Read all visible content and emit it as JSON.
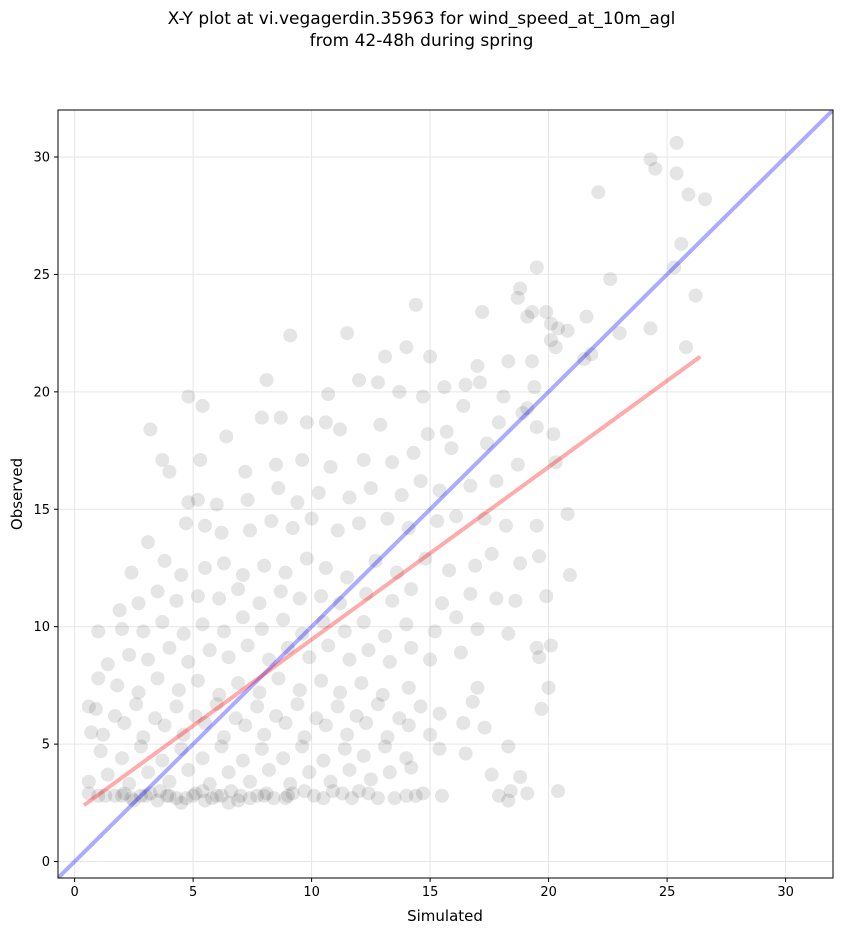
{
  "title_line1": "X-Y plot at vi.vegagerdin.35963 for wind_speed_at_10m_agl",
  "title_line2": "from 42-48h during spring",
  "colors": {
    "points": "#000000",
    "identity_line": "#0000ff",
    "regression_line": "#ff0000",
    "grid": "#e6e6e6"
  },
  "chart_data": {
    "type": "scatter",
    "xlabel": "Simulated",
    "ylabel": "Observed",
    "xlim": [
      -0.7,
      32
    ],
    "ylim": [
      -0.7,
      32
    ],
    "xticks": [
      0,
      5,
      10,
      15,
      20,
      25,
      30
    ],
    "yticks": [
      0,
      5,
      10,
      15,
      20,
      25,
      30
    ],
    "xtick_labels": [
      "0",
      "5",
      "10",
      "15",
      "20",
      "25",
      "30"
    ],
    "ytick_labels": [
      "0",
      "5",
      "10",
      "15",
      "20",
      "25",
      "30"
    ],
    "grid": true,
    "identity_line": {
      "x": [
        -0.7,
        32
      ],
      "y": [
        -0.7,
        32
      ]
    },
    "regression_line": {
      "x": [
        0.4,
        26.4
      ],
      "y": [
        2.4,
        21.5
      ]
    },
    "points": [
      [
        25.4,
        30.6
      ],
      [
        24.3,
        29.9
      ],
      [
        24.5,
        29.5
      ],
      [
        25.4,
        29.3
      ],
      [
        22.1,
        28.5
      ],
      [
        25.9,
        28.4
      ],
      [
        26.6,
        28.2
      ],
      [
        25.6,
        26.3
      ],
      [
        25.3,
        25.3
      ],
      [
        22.6,
        24.8
      ],
      [
        19.5,
        25.3
      ],
      [
        26.2,
        24.1
      ],
      [
        18.8,
        24.4
      ],
      [
        18.7,
        24.0
      ],
      [
        19.3,
        23.4
      ],
      [
        19.9,
        23.4
      ],
      [
        17.2,
        23.4
      ],
      [
        21.6,
        23.2
      ],
      [
        19.1,
        23.2
      ],
      [
        20.1,
        22.9
      ],
      [
        20.4,
        22.7
      ],
      [
        20.8,
        22.6
      ],
      [
        24.3,
        22.7
      ],
      [
        23.0,
        22.5
      ],
      [
        14.4,
        23.7
      ],
      [
        11.5,
        22.5
      ],
      [
        9.1,
        22.4
      ],
      [
        20.1,
        22.2
      ],
      [
        20.3,
        21.9
      ],
      [
        25.8,
        21.9
      ],
      [
        21.8,
        21.6
      ],
      [
        21.5,
        21.4
      ],
      [
        19.3,
        21.3
      ],
      [
        13.1,
        21.5
      ],
      [
        14.0,
        21.9
      ],
      [
        15.0,
        21.5
      ],
      [
        17.0,
        21.1
      ],
      [
        18.3,
        21.3
      ],
      [
        15.6,
        20.2
      ],
      [
        16.5,
        20.3
      ],
      [
        17.1,
        20.4
      ],
      [
        19.4,
        20.2
      ],
      [
        18.1,
        19.8
      ],
      [
        12.0,
        20.5
      ],
      [
        12.8,
        20.4
      ],
      [
        13.7,
        20.0
      ],
      [
        14.7,
        19.8
      ],
      [
        8.1,
        20.5
      ],
      [
        10.7,
        19.9
      ],
      [
        4.8,
        19.8
      ],
      [
        5.4,
        19.4
      ],
      [
        19.1,
        19.3
      ],
      [
        18.9,
        19.1
      ],
      [
        16.4,
        19.4
      ],
      [
        17.9,
        18.7
      ],
      [
        14.9,
        18.2
      ],
      [
        15.7,
        18.3
      ],
      [
        12.9,
        18.6
      ],
      [
        11.2,
        18.4
      ],
      [
        10.6,
        18.7
      ],
      [
        9.8,
        18.7
      ],
      [
        8.7,
        18.9
      ],
      [
        7.9,
        18.9
      ],
      [
        6.4,
        18.1
      ],
      [
        3.2,
        18.4
      ],
      [
        19.5,
        18.5
      ],
      [
        20.2,
        18.2
      ],
      [
        17.4,
        17.8
      ],
      [
        15.9,
        17.6
      ],
      [
        14.3,
        17.4
      ],
      [
        13.4,
        17.0
      ],
      [
        12.2,
        17.1
      ],
      [
        10.8,
        16.8
      ],
      [
        9.6,
        17.1
      ],
      [
        8.5,
        16.9
      ],
      [
        7.2,
        16.6
      ],
      [
        5.3,
        17.1
      ],
      [
        3.7,
        17.1
      ],
      [
        4.0,
        16.6
      ],
      [
        18.7,
        16.9
      ],
      [
        20.3,
        17.0
      ],
      [
        17.8,
        16.2
      ],
      [
        16.7,
        16.0
      ],
      [
        15.4,
        15.8
      ],
      [
        14.6,
        16.2
      ],
      [
        13.8,
        15.6
      ],
      [
        12.5,
        15.9
      ],
      [
        11.6,
        15.5
      ],
      [
        10.3,
        15.7
      ],
      [
        9.4,
        15.3
      ],
      [
        8.6,
        15.9
      ],
      [
        7.3,
        15.4
      ],
      [
        6.0,
        15.2
      ],
      [
        5.2,
        15.4
      ],
      [
        4.8,
        15.3
      ],
      [
        20.8,
        14.8
      ],
      [
        19.5,
        14.3
      ],
      [
        18.2,
        14.3
      ],
      [
        17.3,
        14.6
      ],
      [
        16.1,
        14.7
      ],
      [
        15.3,
        14.5
      ],
      [
        14.1,
        14.2
      ],
      [
        13.2,
        14.6
      ],
      [
        12.0,
        14.4
      ],
      [
        11.1,
        14.1
      ],
      [
        10.0,
        14.6
      ],
      [
        9.2,
        14.2
      ],
      [
        8.3,
        14.5
      ],
      [
        7.4,
        14.1
      ],
      [
        6.2,
        14.0
      ],
      [
        5.5,
        14.3
      ],
      [
        4.7,
        14.4
      ],
      [
        3.1,
        13.6
      ],
      [
        19.6,
        13.0
      ],
      [
        18.8,
        12.7
      ],
      [
        17.6,
        13.1
      ],
      [
        16.9,
        12.6
      ],
      [
        15.8,
        12.4
      ],
      [
        14.8,
        12.9
      ],
      [
        13.6,
        12.3
      ],
      [
        12.7,
        12.8
      ],
      [
        11.5,
        12.1
      ],
      [
        10.6,
        12.5
      ],
      [
        9.8,
        12.9
      ],
      [
        8.9,
        12.3
      ],
      [
        8.0,
        12.6
      ],
      [
        7.1,
        12.2
      ],
      [
        6.3,
        12.7
      ],
      [
        5.5,
        12.5
      ],
      [
        4.5,
        12.2
      ],
      [
        3.8,
        12.8
      ],
      [
        2.4,
        12.3
      ],
      [
        20.9,
        12.2
      ],
      [
        19.9,
        11.3
      ],
      [
        18.6,
        11.1
      ],
      [
        17.8,
        11.2
      ],
      [
        16.7,
        11.4
      ],
      [
        15.5,
        11.0
      ],
      [
        14.2,
        11.6
      ],
      [
        13.4,
        11.1
      ],
      [
        12.3,
        11.4
      ],
      [
        11.2,
        11.0
      ],
      [
        10.4,
        11.3
      ],
      [
        9.5,
        11.2
      ],
      [
        8.7,
        11.5
      ],
      [
        7.8,
        11.0
      ],
      [
        6.9,
        11.6
      ],
      [
        6.1,
        11.2
      ],
      [
        5.2,
        11.3
      ],
      [
        4.3,
        11.1
      ],
      [
        3.5,
        11.5
      ],
      [
        2.7,
        11.0
      ],
      [
        1.9,
        10.7
      ],
      [
        18.3,
        9.7
      ],
      [
        17.0,
        9.9
      ],
      [
        16.1,
        10.4
      ],
      [
        15.2,
        9.8
      ],
      [
        14.0,
        10.1
      ],
      [
        13.1,
        9.6
      ],
      [
        12.2,
        10.2
      ],
      [
        11.4,
        9.8
      ],
      [
        10.5,
        10.2
      ],
      [
        9.6,
        9.7
      ],
      [
        8.8,
        10.3
      ],
      [
        7.9,
        9.9
      ],
      [
        7.1,
        10.4
      ],
      [
        6.3,
        9.8
      ],
      [
        5.4,
        10.1
      ],
      [
        4.6,
        9.7
      ],
      [
        3.7,
        10.2
      ],
      [
        2.9,
        9.8
      ],
      [
        2.0,
        9.9
      ],
      [
        1.0,
        9.8
      ],
      [
        19.5,
        9.1
      ],
      [
        20.1,
        9.2
      ],
      [
        19.6,
        8.7
      ],
      [
        16.3,
        8.9
      ],
      [
        15.0,
        8.6
      ],
      [
        14.2,
        9.1
      ],
      [
        13.3,
        8.5
      ],
      [
        12.4,
        9.0
      ],
      [
        11.6,
        8.6
      ],
      [
        10.7,
        9.2
      ],
      [
        9.9,
        8.7
      ],
      [
        9.0,
        9.1
      ],
      [
        8.2,
        8.6
      ],
      [
        7.3,
        9.2
      ],
      [
        6.5,
        8.7
      ],
      [
        5.7,
        9.0
      ],
      [
        4.8,
        8.5
      ],
      [
        4.0,
        9.1
      ],
      [
        3.1,
        8.6
      ],
      [
        2.3,
        8.8
      ],
      [
        1.4,
        8.4
      ],
      [
        20.0,
        7.4
      ],
      [
        17.0,
        7.4
      ],
      [
        14.1,
        7.4
      ],
      [
        13.0,
        7.1
      ],
      [
        12.1,
        7.6
      ],
      [
        11.2,
        7.2
      ],
      [
        10.4,
        7.7
      ],
      [
        9.5,
        7.3
      ],
      [
        8.6,
        7.8
      ],
      [
        7.8,
        7.2
      ],
      [
        6.9,
        7.6
      ],
      [
        6.1,
        7.1
      ],
      [
        5.2,
        7.7
      ],
      [
        4.4,
        7.3
      ],
      [
        3.5,
        7.8
      ],
      [
        2.7,
        7.2
      ],
      [
        1.8,
        7.5
      ],
      [
        1.0,
        7.8
      ],
      [
        0.6,
        6.6
      ],
      [
        19.7,
        6.5
      ],
      [
        16.8,
        6.8
      ],
      [
        15.4,
        6.3
      ],
      [
        14.6,
        6.6
      ],
      [
        13.7,
        6.1
      ],
      [
        12.8,
        6.7
      ],
      [
        11.9,
        6.2
      ],
      [
        11.1,
        6.6
      ],
      [
        10.2,
        6.1
      ],
      [
        9.4,
        6.7
      ],
      [
        8.5,
        6.2
      ],
      [
        7.7,
        6.6
      ],
      [
        6.8,
        6.1
      ],
      [
        6.0,
        6.7
      ],
      [
        5.1,
        6.2
      ],
      [
        4.3,
        6.6
      ],
      [
        3.4,
        6.1
      ],
      [
        2.6,
        6.7
      ],
      [
        1.7,
        6.2
      ],
      [
        0.9,
        6.5
      ],
      [
        16.4,
        5.9
      ],
      [
        17.3,
        5.7
      ],
      [
        15.0,
        5.4
      ],
      [
        14.1,
        5.8
      ],
      [
        13.2,
        5.3
      ],
      [
        12.3,
        5.9
      ],
      [
        11.5,
        5.4
      ],
      [
        10.6,
        5.8
      ],
      [
        9.7,
        5.3
      ],
      [
        8.9,
        5.9
      ],
      [
        8.0,
        5.4
      ],
      [
        7.2,
        5.8
      ],
      [
        6.3,
        5.3
      ],
      [
        5.5,
        5.9
      ],
      [
        4.6,
        5.4
      ],
      [
        3.8,
        5.8
      ],
      [
        2.9,
        5.3
      ],
      [
        2.1,
        5.9
      ],
      [
        1.2,
        5.4
      ],
      [
        0.7,
        5.5
      ],
      [
        18.3,
        4.9
      ],
      [
        16.5,
        4.6
      ],
      [
        15.4,
        4.8
      ],
      [
        14.0,
        4.4
      ],
      [
        13.1,
        4.9
      ],
      [
        12.2,
        4.5
      ],
      [
        11.4,
        4.8
      ],
      [
        10.5,
        4.3
      ],
      [
        9.6,
        4.9
      ],
      [
        8.8,
        4.4
      ],
      [
        7.9,
        4.8
      ],
      [
        7.1,
        4.3
      ],
      [
        6.2,
        4.9
      ],
      [
        5.4,
        4.4
      ],
      [
        4.5,
        4.8
      ],
      [
        3.7,
        4.3
      ],
      [
        2.8,
        4.9
      ],
      [
        2.0,
        4.4
      ],
      [
        1.1,
        4.7
      ],
      [
        18.8,
        3.6
      ],
      [
        17.6,
        3.7
      ],
      [
        14.2,
        4.0
      ],
      [
        13.3,
        3.8
      ],
      [
        12.5,
        3.5
      ],
      [
        11.6,
        3.9
      ],
      [
        10.8,
        3.4
      ],
      [
        9.9,
        3.8
      ],
      [
        9.1,
        3.3
      ],
      [
        8.2,
        3.9
      ],
      [
        7.4,
        3.4
      ],
      [
        6.5,
        3.8
      ],
      [
        5.7,
        3.3
      ],
      [
        4.8,
        3.9
      ],
      [
        4.0,
        3.4
      ],
      [
        3.1,
        3.8
      ],
      [
        2.3,
        3.3
      ],
      [
        1.4,
        3.7
      ],
      [
        0.6,
        3.4
      ],
      [
        20.4,
        3.0
      ],
      [
        19.1,
        2.9
      ],
      [
        18.4,
        3.0
      ],
      [
        17.9,
        2.8
      ],
      [
        18.3,
        2.6
      ],
      [
        15.5,
        2.8
      ],
      [
        14.7,
        2.9
      ],
      [
        14.0,
        2.8
      ],
      [
        12.8,
        2.7
      ],
      [
        12.0,
        3.0
      ],
      [
        11.3,
        2.9
      ],
      [
        10.5,
        2.7
      ],
      [
        9.7,
        3.0
      ],
      [
        8.9,
        2.7
      ],
      [
        8.1,
        2.9
      ],
      [
        7.4,
        2.7
      ],
      [
        6.6,
        3.0
      ],
      [
        5.8,
        2.7
      ],
      [
        5.1,
        2.9
      ],
      [
        4.3,
        2.7
      ],
      [
        3.6,
        3.0
      ],
      [
        2.8,
        2.8
      ],
      [
        2.1,
        2.9
      ],
      [
        1.3,
        2.8
      ],
      [
        0.6,
        2.9
      ],
      [
        1.7,
        2.8
      ],
      [
        2.4,
        2.7
      ],
      [
        3.2,
        2.9
      ],
      [
        3.9,
        2.8
      ],
      [
        4.7,
        2.7
      ],
      [
        5.4,
        3.0
      ],
      [
        6.2,
        2.8
      ],
      [
        6.9,
        2.6
      ],
      [
        7.7,
        2.8
      ],
      [
        8.4,
        2.7
      ],
      [
        9.2,
        2.9
      ],
      [
        10.1,
        2.8
      ],
      [
        10.9,
        3.0
      ],
      [
        11.7,
        2.7
      ],
      [
        12.4,
        2.9
      ],
      [
        13.5,
        2.7
      ],
      [
        14.4,
        2.8
      ],
      [
        1.0,
        2.8
      ],
      [
        2.0,
        2.8
      ],
      [
        3.0,
        2.8
      ],
      [
        4.0,
        2.8
      ],
      [
        5.0,
        2.8
      ],
      [
        6.0,
        2.8
      ],
      [
        7.0,
        2.8
      ],
      [
        8.0,
        2.8
      ],
      [
        9.0,
        2.8
      ],
      [
        3.5,
        2.6
      ],
      [
        5.5,
        2.6
      ],
      [
        6.5,
        2.5
      ],
      [
        4.5,
        2.5
      ],
      [
        2.5,
        2.6
      ]
    ]
  }
}
